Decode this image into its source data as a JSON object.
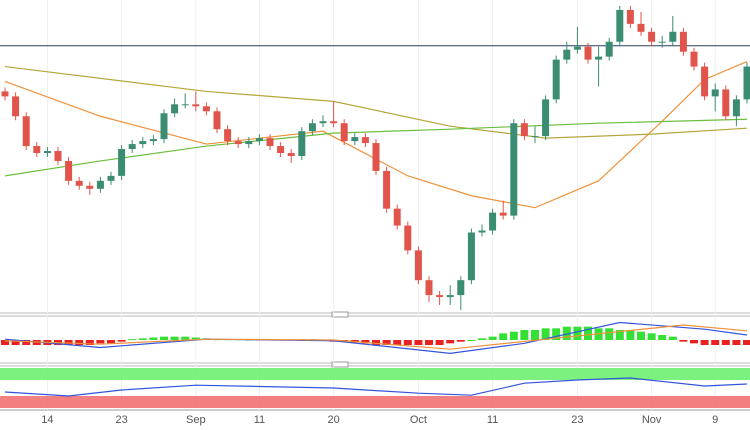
{
  "chart_data": {
    "type": "candlestick",
    "categories": [
      null,
      null,
      null,
      null,
      "14",
      null,
      null,
      null,
      null,
      null,
      null,
      "23",
      null,
      null,
      null,
      null,
      null,
      null,
      "Sep",
      null,
      null,
      null,
      null,
      null,
      "11",
      null,
      null,
      null,
      null,
      null,
      null,
      "20",
      null,
      null,
      null,
      null,
      null,
      null,
      null,
      "Oct",
      null,
      null,
      null,
      null,
      null,
      null,
      "11",
      null,
      null,
      null,
      null,
      null,
      null,
      null,
      "23",
      null,
      null,
      null,
      null,
      null,
      null,
      "Nov",
      null,
      null,
      null,
      null,
      null,
      "9",
      null,
      null,
      null
    ],
    "open": [
      220,
      215,
      195,
      165,
      158,
      160,
      150,
      130,
      125,
      122,
      130,
      135,
      162,
      167,
      170,
      172,
      198,
      207,
      207,
      205,
      200,
      182,
      170,
      167,
      170,
      173,
      165,
      158,
      155,
      180,
      188,
      190,
      188,
      170,
      174,
      168,
      140,
      102,
      85,
      60,
      30,
      15,
      13,
      15,
      30,
      78,
      80,
      98,
      95,
      188,
      175,
      175,
      212,
      252,
      262,
      265,
      252,
      255,
      270,
      302,
      288,
      280,
      270,
      270,
      280,
      260,
      245,
      215,
      222,
      195,
      212
    ],
    "high": [
      224,
      219,
      199,
      169,
      164,
      164,
      154,
      134,
      129,
      134,
      139,
      166,
      171,
      174,
      176,
      202,
      213,
      218,
      220,
      209,
      204,
      186,
      174,
      174,
      177,
      177,
      169,
      162,
      184,
      192,
      196,
      210,
      192,
      178,
      178,
      172,
      144,
      106,
      89,
      64,
      34,
      19,
      25,
      34,
      82,
      86,
      102,
      110,
      192,
      192,
      185,
      216,
      256,
      270,
      285,
      269,
      265,
      274,
      306,
      306,
      300,
      284,
      276,
      296,
      284,
      264,
      249,
      228,
      226,
      216,
      249
    ],
    "low": [
      211,
      191,
      161,
      154,
      154,
      146,
      126,
      121,
      116,
      118,
      126,
      131,
      158,
      163,
      166,
      168,
      194,
      203,
      200,
      196,
      178,
      166,
      163,
      163,
      166,
      161,
      154,
      148,
      151,
      176,
      184,
      184,
      166,
      166,
      164,
      136,
      98,
      81,
      56,
      26,
      8,
      5,
      5,
      0,
      26,
      74,
      76,
      91,
      91,
      171,
      168,
      171,
      208,
      248,
      258,
      248,
      225,
      251,
      266,
      284,
      276,
      266,
      264,
      266,
      256,
      241,
      211,
      200,
      191,
      185,
      208
    ],
    "close": [
      215,
      195,
      165,
      158,
      160,
      150,
      130,
      125,
      122,
      130,
      135,
      162,
      167,
      170,
      172,
      198,
      207,
      207,
      205,
      200,
      182,
      170,
      167,
      170,
      173,
      165,
      158,
      155,
      180,
      188,
      190,
      188,
      170,
      174,
      168,
      140,
      102,
      85,
      60,
      30,
      15,
      13,
      15,
      30,
      78,
      80,
      98,
      95,
      188,
      175,
      175,
      212,
      252,
      262,
      265,
      252,
      255,
      270,
      302,
      288,
      280,
      270,
      270,
      280,
      260,
      245,
      215,
      222,
      195,
      212,
      245
    ],
    "up_color": "#3a8c72",
    "down_color": "#e0544b",
    "ylim": [
      0,
      310
    ],
    "level": 266,
    "level_color": "#2a3f5f",
    "series": [
      {
        "color": "#f0913a",
        "x": [
          0,
          9,
          19,
          30,
          38,
          44,
          50,
          56,
          62,
          66,
          70
        ],
        "values": [
          230,
          195,
          167,
          180,
          135,
          115,
          103,
          130,
          190,
          232,
          250
        ]
      },
      {
        "color": "#b5a63c",
        "x": [
          0,
          19,
          31,
          42,
          51,
          61,
          70
        ],
        "values": [
          245,
          220,
          210,
          185,
          173,
          177,
          183
        ]
      },
      {
        "color": "#6cbf3c",
        "x": [
          0,
          9,
          19,
          31,
          42,
          56,
          70
        ],
        "values": [
          135,
          150,
          165,
          178,
          182,
          188,
          192
        ]
      }
    ],
    "macd": {
      "ylim": [
        -12,
        12
      ],
      "up_color": "#33e033",
      "down_color": "#e82020",
      "histogram": [
        -3,
        -3,
        -3,
        -3,
        -3,
        -3,
        -3,
        -3,
        -3,
        -2,
        -2,
        -1,
        0.5,
        1,
        1.5,
        2,
        2,
        2,
        1.5,
        1,
        0.5,
        0.5,
        0.5,
        0.3,
        0.3,
        0.3,
        0.3,
        0.3,
        0.5,
        0.5,
        0.3,
        -1,
        -1,
        -1.5,
        -2,
        -3,
        -3,
        -3,
        -3,
        -3,
        -3,
        -3,
        -2,
        -1,
        0,
        1,
        2,
        4,
        5,
        6,
        6,
        7,
        7,
        8,
        8,
        8,
        7,
        7,
        6,
        6,
        5,
        4,
        3,
        2,
        -1,
        -2,
        -3,
        -3,
        -3,
        -3,
        -3
      ],
      "series": [
        {
          "color": "#3355dd",
          "x": [
            0,
            9,
            19,
            31,
            42,
            49,
            58,
            66,
            70
          ],
          "values": [
            0.5,
            -4.5,
            0.5,
            -0.5,
            -8,
            -2,
            10.5,
            6.5,
            3
          ]
        },
        {
          "color": "#f0913a",
          "x": [
            0,
            9,
            19,
            31,
            42,
            51,
            64,
            70
          ],
          "values": [
            -0.5,
            -2.5,
            0.5,
            0,
            -5.5,
            0.5,
            9,
            5.5
          ]
        }
      ]
    },
    "oscillator": {
      "ylim": [
        0,
        100
      ],
      "upper": 70,
      "lower": 30,
      "upper_color": "#66ee66",
      "lower_color": "#f06a6a",
      "series": [
        {
          "color": "#3355dd",
          "x": [
            0,
            6,
            11,
            18,
            31,
            39,
            44,
            49,
            54,
            59,
            66,
            70
          ],
          "values": [
            40,
            30,
            45,
            57,
            50,
            37,
            32,
            62,
            70,
            75,
            55,
            60
          ]
        }
      ]
    }
  }
}
